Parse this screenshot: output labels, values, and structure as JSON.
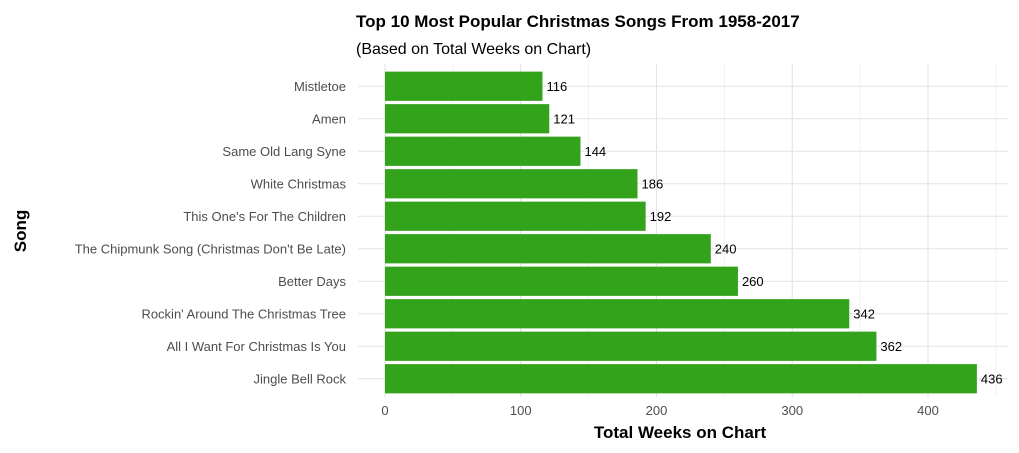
{
  "chart_data": {
    "type": "bar",
    "orientation": "horizontal",
    "title": "Top 10 Most Popular Christmas Songs From 1958-2017",
    "subtitle": "(Based on Total Weeks on Chart)",
    "xlabel": "Total Weeks on Chart",
    "ylabel": "Song",
    "categories": [
      "Mistletoe",
      "Amen",
      "Same Old Lang Syne",
      "White Christmas",
      "This One's For The Children",
      "The Chipmunk Song (Christmas Don't Be Late)",
      "Better Days",
      "Rockin' Around The Christmas Tree",
      "All I Want For Christmas Is You",
      "Jingle Bell Rock"
    ],
    "values": [
      116,
      121,
      144,
      186,
      192,
      240,
      260,
      342,
      362,
      436
    ],
    "xlim": [
      0,
      457
    ],
    "x_ticks": [
      0,
      100,
      200,
      300,
      400
    ],
    "bar_color": "#33a31b",
    "grid": true,
    "legend": "none"
  }
}
